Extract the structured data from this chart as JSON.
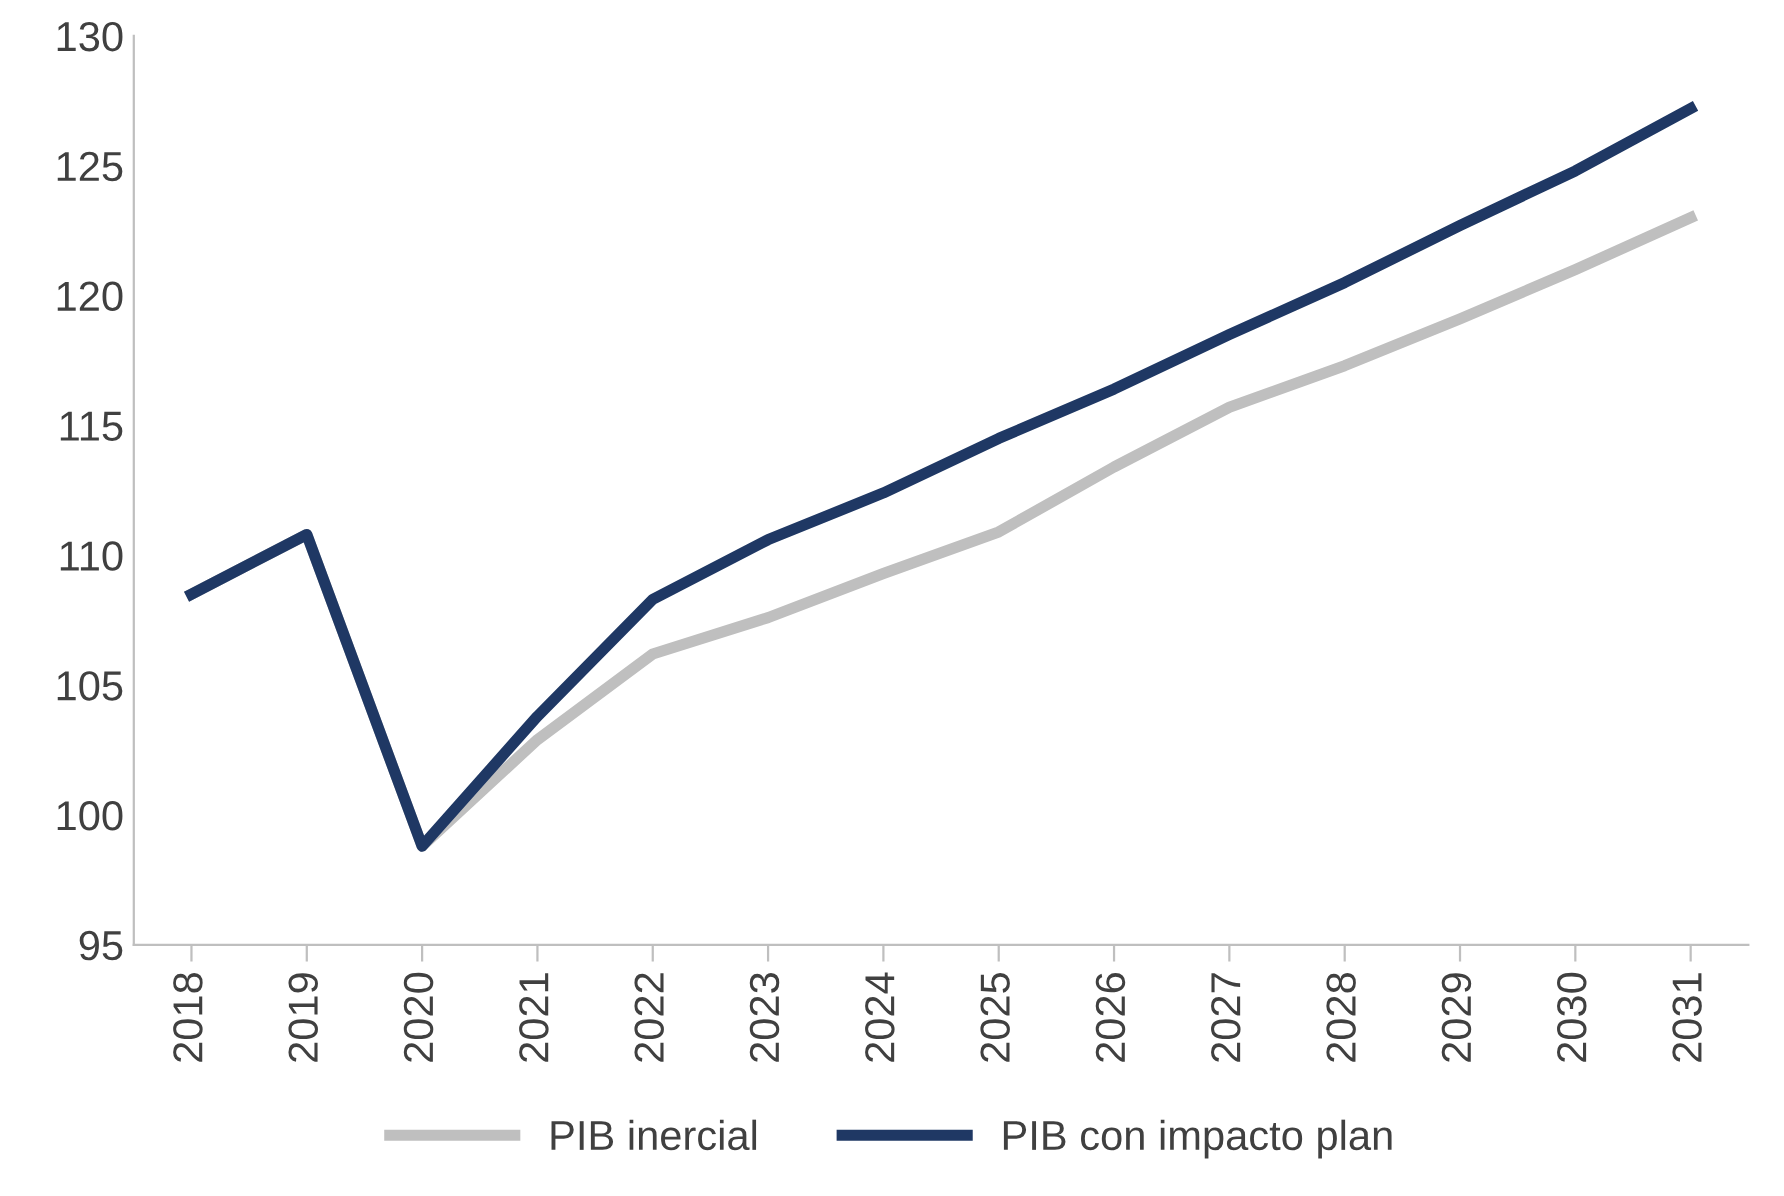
{
  "chart_data": {
    "type": "line",
    "categories": [
      "2018",
      "2019",
      "2020",
      "2021",
      "2022",
      "2023",
      "2024",
      "2025",
      "2026",
      "2027",
      "2028",
      "2029",
      "2030",
      "2031"
    ],
    "series": [
      {
        "name": "PIB inercial",
        "color": "#bfbfbf",
        "values": [
          108.5,
          110.8,
          98.8,
          102.9,
          106.2,
          107.6,
          109.3,
          110.9,
          113.4,
          115.7,
          117.3,
          119.1,
          121.0,
          123.0
        ]
      },
      {
        "name": "PIB con impacto plan",
        "color": "#1f3864",
        "values": [
          108.5,
          110.8,
          98.8,
          103.8,
          108.3,
          110.6,
          112.4,
          114.5,
          116.4,
          118.5,
          120.5,
          122.7,
          124.8,
          127.2
        ]
      }
    ],
    "ylim": [
      95,
      130
    ],
    "yticks": [
      95,
      100,
      105,
      110,
      115,
      120,
      125,
      130
    ],
    "grid": false,
    "legend": "bottom",
    "marker": "none",
    "line_style": "solid"
  }
}
